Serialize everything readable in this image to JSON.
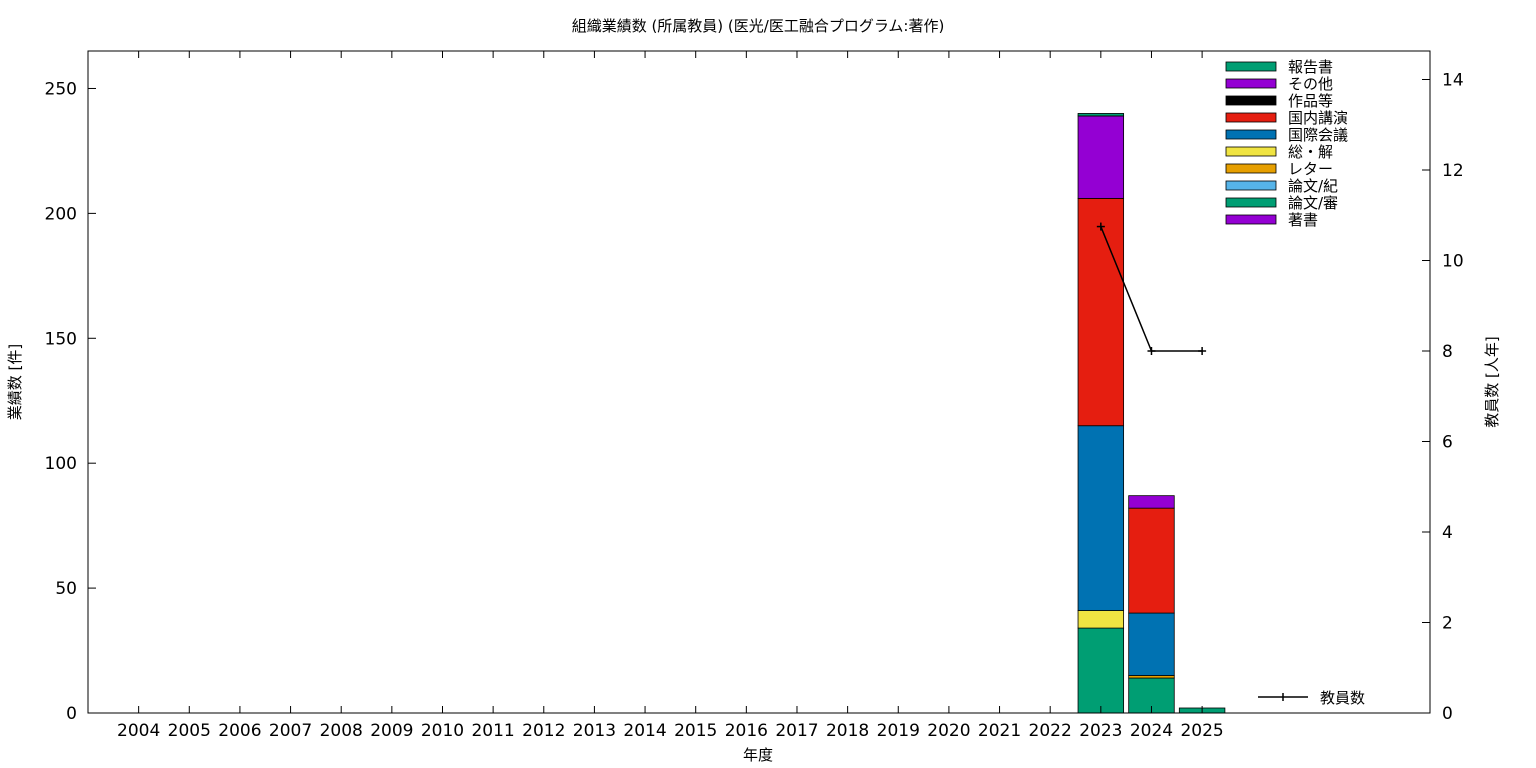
{
  "chart_data": {
    "type": "bar",
    "stacked": true,
    "title": "組織業績数 (所属教員) (医光/医工融合プログラム:著作)",
    "xlabel": "年度",
    "ylabel": "業績数 [件]",
    "y2label": "教員数 [人年]",
    "categories": [
      "2004",
      "2005",
      "2006",
      "2007",
      "2008",
      "2009",
      "2010",
      "2011",
      "2012",
      "2013",
      "2014",
      "2015",
      "2016",
      "2017",
      "2018",
      "2019",
      "2020",
      "2021",
      "2022",
      "2023",
      "2024",
      "2025"
    ],
    "ylim": [
      0,
      265
    ],
    "y2lim": [
      0,
      14.63
    ],
    "yticks": [
      0,
      50,
      100,
      150,
      200,
      250
    ],
    "y2ticks": [
      0,
      2,
      4,
      6,
      8,
      10,
      12,
      14
    ],
    "grid": false,
    "legend_position": "top-right",
    "series": [
      {
        "name": "論文/審",
        "color": "#009e73",
        "values": [
          0,
          0,
          0,
          0,
          0,
          0,
          0,
          0,
          0,
          0,
          0,
          0,
          0,
          0,
          0,
          0,
          0,
          0,
          0,
          34,
          14,
          2
        ]
      },
      {
        "name": "論文/紀",
        "color": "#56b4e9",
        "values": [
          0,
          0,
          0,
          0,
          0,
          0,
          0,
          0,
          0,
          0,
          0,
          0,
          0,
          0,
          0,
          0,
          0,
          0,
          0,
          0,
          0,
          0
        ]
      },
      {
        "name": "レター",
        "color": "#e69f00",
        "values": [
          0,
          0,
          0,
          0,
          0,
          0,
          0,
          0,
          0,
          0,
          0,
          0,
          0,
          0,
          0,
          0,
          0,
          0,
          0,
          0,
          1,
          0
        ]
      },
      {
        "name": "総・解",
        "color": "#f0e442",
        "values": [
          0,
          0,
          0,
          0,
          0,
          0,
          0,
          0,
          0,
          0,
          0,
          0,
          0,
          0,
          0,
          0,
          0,
          0,
          0,
          7,
          0,
          0
        ]
      },
      {
        "name": "国際会議",
        "color": "#0072b2",
        "values": [
          0,
          0,
          0,
          0,
          0,
          0,
          0,
          0,
          0,
          0,
          0,
          0,
          0,
          0,
          0,
          0,
          0,
          0,
          0,
          74,
          25,
          0
        ]
      },
      {
        "name": "国内講演",
        "color": "#e51e10",
        "values": [
          0,
          0,
          0,
          0,
          0,
          0,
          0,
          0,
          0,
          0,
          0,
          0,
          0,
          0,
          0,
          0,
          0,
          0,
          0,
          91,
          42,
          0
        ]
      },
      {
        "name": "作品等",
        "color": "#000000",
        "values": [
          0,
          0,
          0,
          0,
          0,
          0,
          0,
          0,
          0,
          0,
          0,
          0,
          0,
          0,
          0,
          0,
          0,
          0,
          0,
          0,
          0,
          0
        ]
      },
      {
        "name": "その他",
        "color": "#9400d3",
        "values": [
          0,
          0,
          0,
          0,
          0,
          0,
          0,
          0,
          0,
          0,
          0,
          0,
          0,
          0,
          0,
          0,
          0,
          0,
          0,
          33,
          5,
          0
        ]
      },
      {
        "name": "報告書",
        "color": "#009e73",
        "values": [
          0,
          0,
          0,
          0,
          0,
          0,
          0,
          0,
          0,
          0,
          0,
          0,
          0,
          0,
          0,
          0,
          0,
          0,
          0,
          1,
          0,
          0
        ]
      }
    ],
    "legend_order": [
      "報告書",
      "その他",
      "作品等",
      "国内講演",
      "国際会議",
      "総・解",
      "レター",
      "論文/紀",
      "論文/審",
      "著書"
    ],
    "legend_colors": {
      "報告書": "#009e73",
      "その他": "#9400d3",
      "作品等": "#000000",
      "国内講演": "#e51e10",
      "国際会議": "#0072b2",
      "総・解": "#f0e442",
      "レター": "#e69f00",
      "論文/紀": "#56b4e9",
      "論文/審": "#009e73",
      "著書": "#9400d3"
    },
    "line_series": {
      "name": "教員数",
      "axis": "y2",
      "color": "#000000",
      "points": [
        {
          "category": "2023",
          "value": 10.75
        },
        {
          "category": "2024",
          "value": 8
        },
        {
          "category": "2025",
          "value": 8
        }
      ]
    }
  }
}
